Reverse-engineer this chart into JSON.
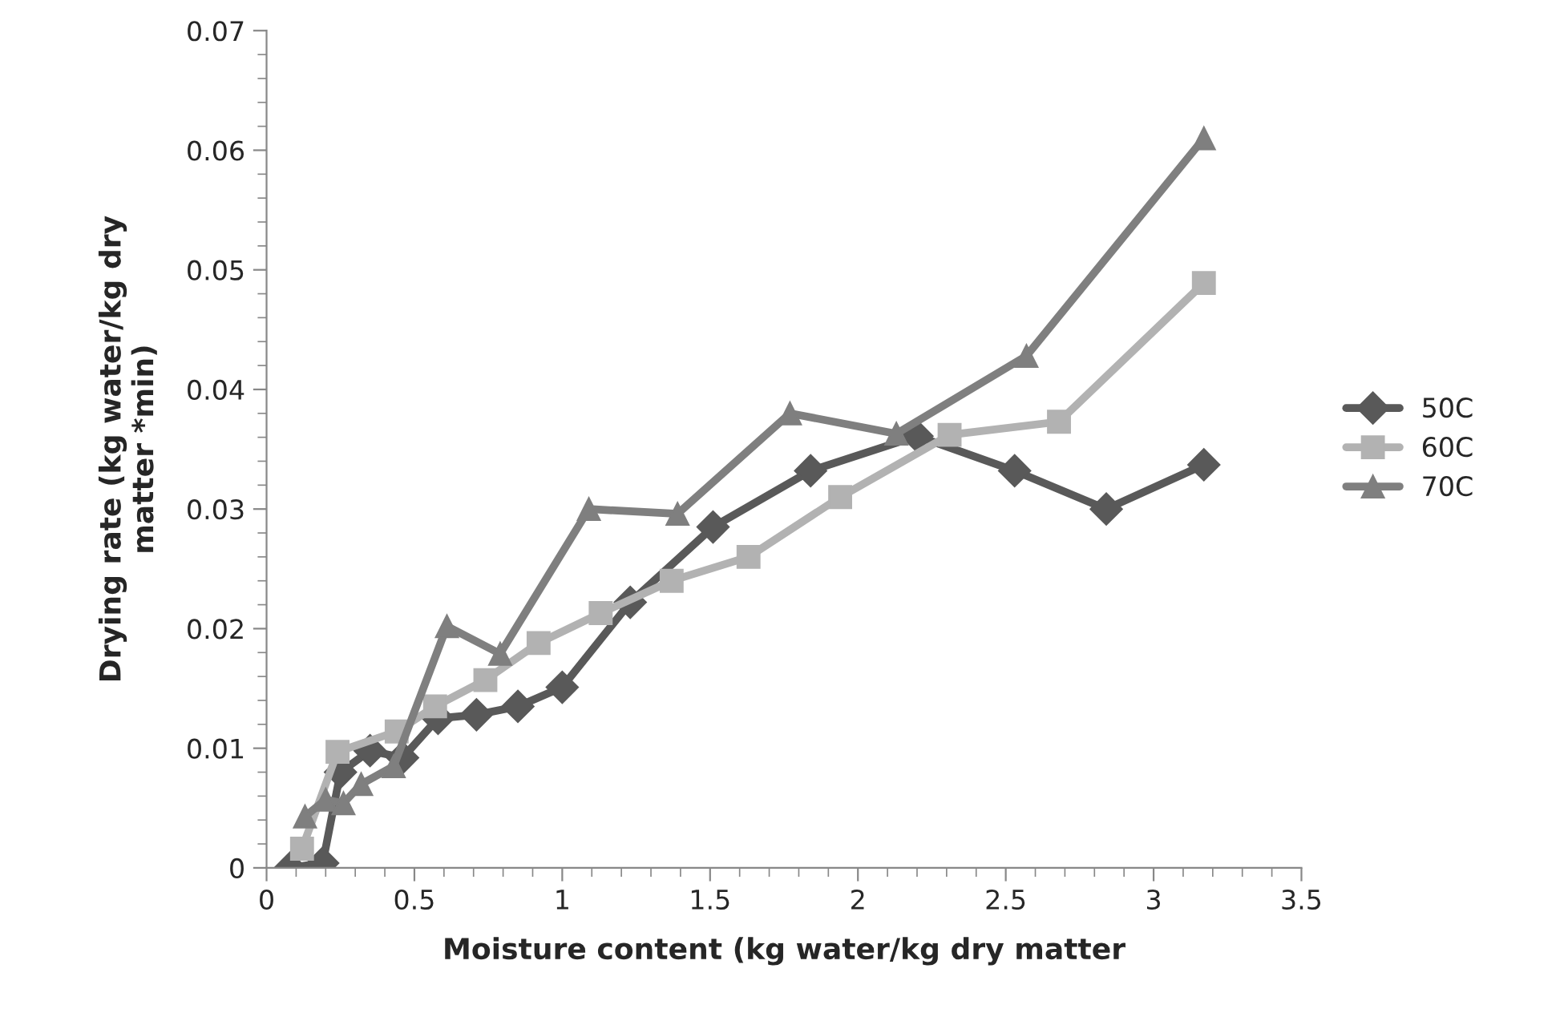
{
  "chart_data": {
    "type": "line",
    "xlabel": "Moisture content (kg water/kg dry matter",
    "ylabel": "Drying rate (kg water/kg dry\nmatter *min)",
    "xlim": [
      0,
      3.5
    ],
    "xticks": [
      0,
      0.5,
      1,
      1.5,
      2,
      2.5,
      3,
      3.5
    ],
    "ylim": [
      0,
      0.07
    ],
    "yticks": [
      0,
      0.01,
      0.02,
      0.03,
      0.04,
      0.05,
      0.06,
      0.07
    ],
    "grid": false,
    "legend": "right",
    "series": [
      {
        "name": "50C",
        "color": "#595959",
        "marker": "diamond",
        "x": [
          0.08,
          0.19,
          0.25,
          0.35,
          0.46,
          0.58,
          0.71,
          0.85,
          1.0,
          1.23,
          1.51,
          1.84,
          2.2,
          2.53,
          2.84,
          3.17
        ],
        "values": [
          0.0,
          0.0004,
          0.008,
          0.0098,
          0.0092,
          0.0125,
          0.0128,
          0.0135,
          0.0151,
          0.0222,
          0.0285,
          0.0332,
          0.0361,
          0.0332,
          0.03,
          0.0337
        ]
      },
      {
        "name": "60C",
        "color": "#b2b2b2",
        "marker": "square",
        "x": [
          0.12,
          0.24,
          0.44,
          0.57,
          0.74,
          0.92,
          1.13,
          1.37,
          1.63,
          1.94,
          2.31,
          2.68,
          3.17
        ],
        "values": [
          0.0016,
          0.0097,
          0.0114,
          0.0135,
          0.0157,
          0.0188,
          0.0213,
          0.024,
          0.026,
          0.031,
          0.0362,
          0.0373,
          0.0489
        ]
      },
      {
        "name": "70C",
        "color": "#7f7f7f",
        "marker": "triangle",
        "x": [
          0.13,
          0.2,
          0.26,
          0.32,
          0.43,
          0.61,
          0.79,
          1.09,
          1.39,
          1.77,
          2.13,
          2.57,
          3.17
        ],
        "values": [
          0.0043,
          0.0057,
          0.0054,
          0.007,
          0.0085,
          0.0202,
          0.0179,
          0.03,
          0.0296,
          0.038,
          0.0363,
          0.0428,
          0.061
        ]
      }
    ]
  }
}
